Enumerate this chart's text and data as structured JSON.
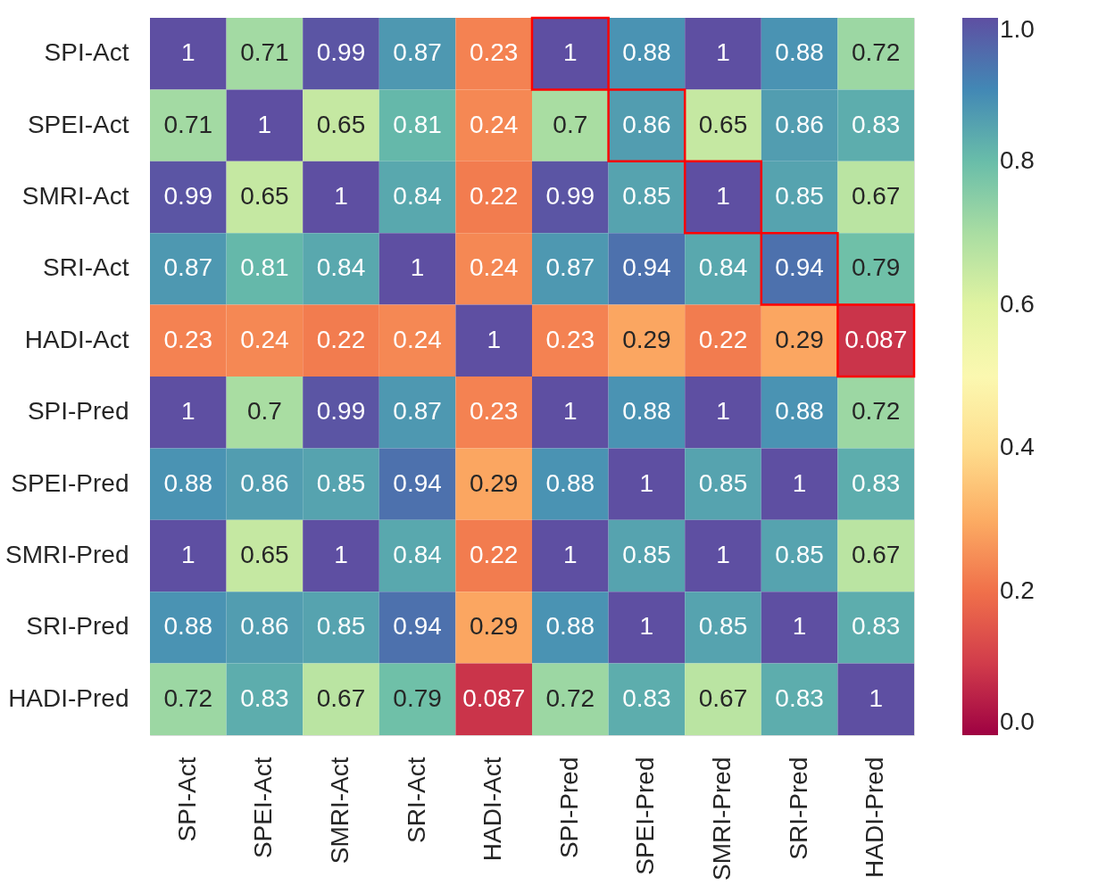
{
  "chart_data": {
    "type": "heatmap",
    "categories": [
      "SPI-Act",
      "SPEI-Act",
      "SMRI-Act",
      "SRI-Act",
      "HADI-Act",
      "SPI-Pred",
      "SPEI-Pred",
      "SMRI-Pred",
      "SRI-Pred",
      "HADI-Pred"
    ],
    "y_categories": [
      "SPI-Act",
      "SPEI-Act",
      "SMRI-Act",
      "SRI-Act",
      "HADI-Act",
      "SPI-Pred",
      "SPEI-Pred",
      "SMRI-Pred",
      "SRI-Pred",
      "HADI-Pred"
    ],
    "cells": [
      [
        1,
        0.71,
        0.99,
        0.87,
        0.23,
        1,
        0.88,
        1,
        0.88,
        0.72
      ],
      [
        0.71,
        1,
        0.65,
        0.81,
        0.24,
        0.7,
        0.86,
        0.65,
        0.86,
        0.83
      ],
      [
        0.99,
        0.65,
        1,
        0.84,
        0.22,
        0.99,
        0.85,
        1,
        0.85,
        0.67
      ],
      [
        0.87,
        0.81,
        0.84,
        1,
        0.24,
        0.87,
        0.94,
        0.84,
        0.94,
        0.79
      ],
      [
        0.23,
        0.24,
        0.22,
        0.24,
        1,
        0.23,
        0.29,
        0.22,
        0.29,
        0.087
      ],
      [
        1,
        0.7,
        0.99,
        0.87,
        0.23,
        1,
        0.88,
        1,
        0.88,
        0.72
      ],
      [
        0.88,
        0.86,
        0.85,
        0.94,
        0.29,
        0.88,
        1,
        0.85,
        1,
        0.83
      ],
      [
        1,
        0.65,
        1,
        0.84,
        0.22,
        1,
        0.85,
        1,
        0.85,
        0.67
      ],
      [
        0.88,
        0.86,
        0.85,
        0.94,
        0.29,
        0.88,
        1,
        0.85,
        1,
        0.83
      ],
      [
        0.72,
        0.83,
        0.67,
        0.79,
        0.087,
        0.72,
        0.83,
        0.67,
        0.83,
        1
      ]
    ],
    "clim": [
      0,
      1
    ],
    "cticks": [
      {
        "value": 0,
        "label": "0.0"
      },
      0.2,
      0.4,
      0.6,
      0.8,
      {
        "value": 1,
        "label": "1.0"
      }
    ],
    "data_labels": true
  }
}
